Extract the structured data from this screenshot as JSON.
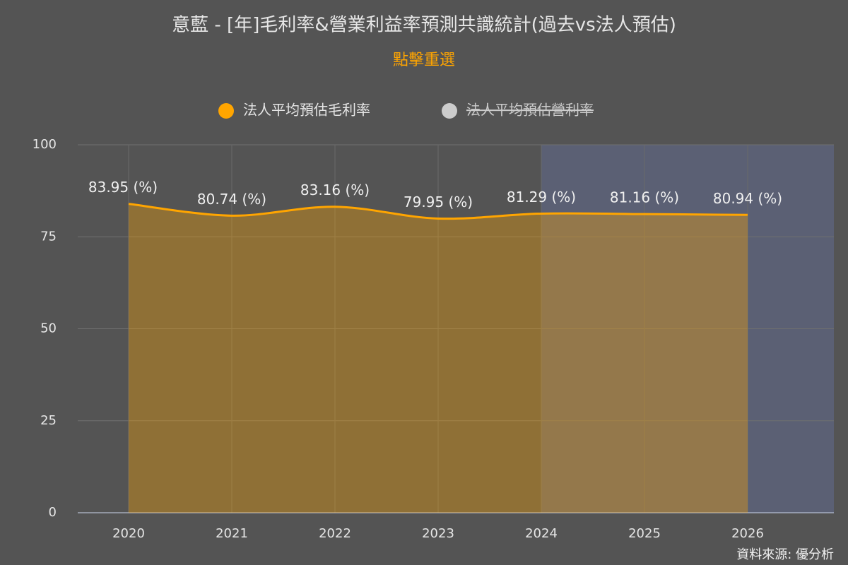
{
  "chart_data": {
    "type": "area",
    "title": "意藍 - [年]毛利率&營業利益率預測共識統計(過去vs法人預估)",
    "subtitle": "點擊重選",
    "source": "資料來源: 優分析",
    "categories": [
      "2020",
      "2021",
      "2022",
      "2023",
      "2024",
      "2025",
      "2026"
    ],
    "series": [
      {
        "name": "法人平均預估毛利率",
        "color": "#ffa500",
        "visible": true,
        "values": [
          83.95,
          80.74,
          83.16,
          79.95,
          81.29,
          81.16,
          80.94
        ],
        "value_labels": [
          "83.95 (%)",
          "80.74 (%)",
          "83.16 (%)",
          "79.95 (%)",
          "81.29 (%)",
          "81.16 (%)",
          "80.94 (%)"
        ]
      },
      {
        "name": "法人平均預估營利率",
        "color": "#cccccc",
        "visible": false,
        "values": [
          null,
          null,
          null,
          null,
          null,
          null,
          null
        ]
      }
    ],
    "plot_band": {
      "from": "2024",
      "color": "#5b6074"
    },
    "ylim": [
      0,
      100
    ],
    "yticks": [
      0,
      25,
      50,
      75,
      100
    ],
    "grid": true
  }
}
